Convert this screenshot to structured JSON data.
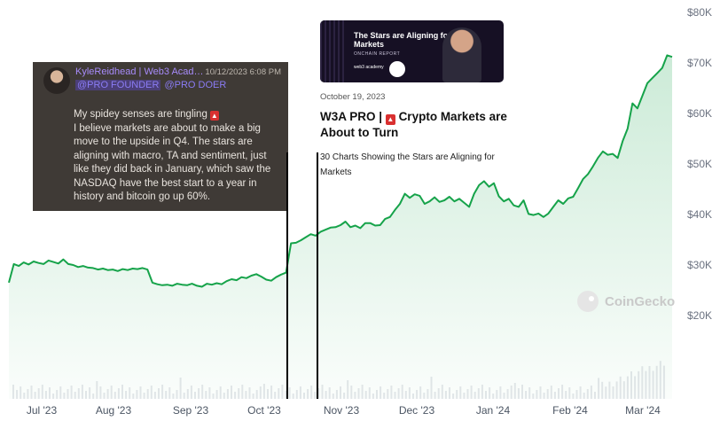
{
  "chart_data": {
    "type": "area",
    "y_ticks": [
      "$80K",
      "$70K",
      "$60K",
      "$50K",
      "$40K",
      "$30K",
      "$20K"
    ],
    "x_ticks": [
      "Jul '23",
      "Aug '23",
      "Sep '23",
      "Oct '23",
      "Nov '23",
      "Dec '23",
      "Jan '24",
      "Feb '24",
      "Mar '24"
    ],
    "ylim": [
      10000,
      82000
    ],
    "series": [
      {
        "values": [
          26500,
          30200,
          29800,
          30500,
          30100,
          30700,
          30400,
          30200,
          30900,
          30600,
          30300,
          31100,
          30200,
          30000,
          29600,
          29800,
          29500,
          29400,
          29100,
          29300,
          29000,
          29100,
          28800,
          29200,
          29000,
          29300,
          29200,
          29400,
          29100,
          26500,
          26200,
          26000,
          26100,
          25900,
          26300,
          26100,
          26000,
          26300,
          25900,
          25700,
          26300,
          26100,
          26400,
          26200,
          26800,
          27200,
          27000,
          27600,
          27400,
          27900,
          28200,
          27700,
          27100,
          26900,
          27600,
          28100,
          28500,
          34300,
          34400,
          34900,
          35500,
          36100,
          35800,
          36600,
          37000,
          37400,
          37500,
          37900,
          38600,
          37500,
          37800,
          37300,
          38300,
          38300,
          37800,
          37900,
          39100,
          39500,
          40900,
          42100,
          44100,
          43300,
          44000,
          43700,
          42100,
          42600,
          43400,
          42500,
          42800,
          43500,
          42600,
          43100,
          42300,
          41500,
          44100,
          45800,
          46600,
          45500,
          46200,
          43600,
          42600,
          43100,
          41800,
          41500,
          42800,
          40100,
          39900,
          40200,
          39500,
          40200,
          41500,
          42800,
          42100,
          43200,
          43500,
          45200,
          47000,
          48000,
          49500,
          51200,
          52500,
          51800,
          52000,
          51200,
          54500,
          57000,
          62000,
          61000,
          63500,
          66000,
          67000,
          68000,
          69000,
          71500,
          71200
        ]
      }
    ],
    "watermark": "CoinGecko"
  },
  "tweet": {
    "author": "KyleReidhead | Web3 Acad…",
    "timestamp": "10/12/2023 6:08 PM",
    "handle_1": "@PRO FOUNDER",
    "handle_2": "@PRO DOER",
    "line_1": "My spidey senses are tingling",
    "line_2": "I believe markets are about to make a big move to the upside in Q4. The stars are aligning with macro, TA and sentiment, just like they did back in January, which saw the NASDAQ have the best start to a year in history and bitcoin go up 60%."
  },
  "article": {
    "thumb_title": "The Stars are Aligning for Markets",
    "thumb_subtitle": "ONCHAIN REPORT",
    "thumb_logo": "web3 academy",
    "date": "October 19, 2023",
    "title_prefix": "W3A PRO |",
    "title_suffix": "Crypto Markets are About to Turn",
    "description": "30 Charts Showing the Stars are Aligning for Markets"
  }
}
